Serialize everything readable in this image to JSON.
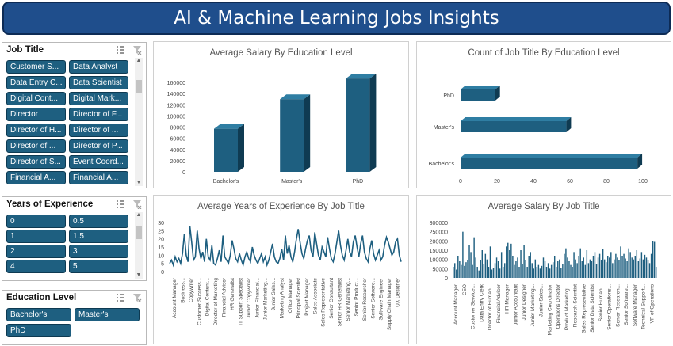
{
  "header": {
    "title": "AI & Machine Learning Jobs Insights"
  },
  "slicers": {
    "job_title": {
      "title": "Job Title",
      "items": [
        "Customer S...",
        "Data Analyst",
        "Data Entry C...",
        "Data Scientist",
        "Digital Cont...",
        "Digital Mark...",
        "Director",
        "Director of F...",
        "Director of H...",
        "Director of ...",
        "Director of ...",
        "Director of P...",
        "Director of S...",
        "Event Coord...",
        "Financial A...",
        "Financial A..."
      ]
    },
    "years_experience": {
      "title": "Years of Experience",
      "items": [
        "0",
        "0.5",
        "1",
        "1.5",
        "2",
        "3",
        "4",
        "5"
      ]
    },
    "education_level": {
      "title": "Education Level",
      "items": [
        "Bachelor's",
        "Master's",
        "PhD"
      ]
    }
  },
  "colors": {
    "bar": "#1e5f80",
    "bar_top": "#2f7ea3",
    "bar_side": "#0f3b52",
    "banner": "#1f4e8c"
  },
  "icons": {
    "multi_select": "multi-select-icon",
    "clear_filter": "clear-filter-icon"
  },
  "charts": {
    "salary_by_education": {
      "title": "Average Salary By Education Level",
      "type": "bar",
      "categories": [
        "Bachelor's",
        "Master's",
        "PhD"
      ],
      "values": [
        77000,
        130000,
        167000
      ],
      "yticks": [
        "0",
        "20000",
        "40000",
        "60000",
        "80000",
        "100000",
        "120000",
        "140000",
        "160000"
      ],
      "ylim": [
        0,
        170000
      ]
    },
    "count_by_education": {
      "title": "Count of Job Title By Education Level",
      "type": "bar-horizontal",
      "categories": [
        "Bachelor's",
        "Master's",
        "PhD"
      ],
      "values": [
        97,
        58,
        19
      ],
      "xticks": [
        "0",
        "20",
        "40",
        "60",
        "80",
        "100"
      ],
      "xlim": [
        0,
        100
      ]
    },
    "experience_by_title": {
      "title": "Average Years of Experience By Job Title",
      "type": "line",
      "yticks": [
        "0",
        "5",
        "10",
        "15",
        "20",
        "25",
        "30"
      ],
      "ylim": [
        0,
        30
      ],
      "xlabels": [
        "Account Manager",
        "Business...",
        "Copywriter",
        "Customer Success...",
        "Digital Content...",
        "Director of Marketing",
        "Financial Advisor",
        "HR Generalist",
        "IT Support Specialist",
        "Junior Copywriter",
        "Junior Financial...",
        "Junior Marketing...",
        "Junior Sales...",
        "Marketing Analyst",
        "Office Manager",
        "Principal Scientist",
        "Project Manager",
        "Sales Associate",
        "Sales Representative",
        "Senior Consultant",
        "Senior HR Generalist",
        "Senior Marketing...",
        "Senior Product...",
        "Senior Researcher",
        "Senior Software...",
        "Software Engineer",
        "Supply Chain Manager",
        "UX Designer"
      ],
      "values": [
        5,
        7,
        4,
        9,
        6,
        8,
        5,
        11,
        23,
        10,
        6,
        28,
        18,
        7,
        9,
        25,
        14,
        8,
        12,
        6,
        20,
        9,
        7,
        16,
        5,
        4,
        8,
        13,
        6,
        22,
        9,
        7,
        5,
        10,
        19,
        14,
        8,
        6,
        11,
        7,
        4,
        9,
        12,
        8,
        6,
        15,
        10,
        7,
        5,
        8,
        11,
        6,
        9,
        4,
        7,
        12,
        17,
        9,
        6,
        5,
        8,
        14,
        7,
        22,
        11,
        16,
        9,
        6,
        12,
        20,
        26,
        18,
        11,
        8,
        14,
        19,
        22,
        13,
        9,
        24,
        17,
        10,
        7,
        15,
        12,
        9,
        21,
        14,
        8,
        6,
        11,
        18,
        25,
        16,
        10,
        7,
        13,
        20,
        12,
        9,
        18,
        22,
        15,
        9,
        17,
        22,
        12,
        8,
        6,
        14,
        19,
        11,
        7,
        10,
        13,
        7,
        9,
        16,
        21,
        18,
        14,
        10,
        12,
        18,
        20,
        10,
        6
      ],
      "xtick_count": 28
    },
    "salary_by_title": {
      "title": "Average Salary By Job Title",
      "type": "bar",
      "yticks": [
        "0",
        "50000",
        "100000",
        "150000",
        "200000",
        "250000",
        "300000"
      ],
      "ylim": [
        0,
        300000
      ],
      "xlabels": [
        "Account Manager",
        "CEO",
        "Customer Service...",
        "Data Entry Clerk",
        "Director of Human...",
        "Financial Advisor",
        "HR Manager",
        "Junior Accountant",
        "Junior Designer",
        "Junior Marketing...",
        "Junior Sales...",
        "Marketing Coordinator",
        "Operations Director",
        "Product Marketing...",
        "Research Scientist",
        "Sales Representative",
        "Senior Data Scientist",
        "Senior Human...",
        "Senior Operations...",
        "Senior Research...",
        "Senior Software...",
        "Software Manager",
        "Technical Support...",
        "VP of Operations"
      ],
      "values": [
        60000,
        80000,
        45000,
        120000,
        90000,
        70000,
        250000,
        65000,
        85000,
        95000,
        180000,
        140000,
        70000,
        220000,
        110000,
        60000,
        40000,
        95000,
        150000,
        75000,
        130000,
        100000,
        60000,
        170000,
        45000,
        55000,
        80000,
        110000,
        90000,
        50000,
        140000,
        60000,
        80000,
        170000,
        190000,
        150000,
        185000,
        120000,
        70000,
        90000,
        110000,
        60000,
        150000,
        75000,
        180000,
        95000,
        60000,
        120000,
        140000,
        80000,
        50000,
        100000,
        60000,
        70000,
        50000,
        65000,
        110000,
        90000,
        60000,
        80000,
        50000,
        70000,
        85000,
        120000,
        60000,
        90000,
        100000,
        55000,
        75000,
        130000,
        160000,
        110000,
        90000,
        70000,
        60000,
        140000,
        100000,
        80000,
        120000,
        160000,
        90000,
        110000,
        70000,
        150000,
        80000,
        100000,
        90000,
        120000,
        140000,
        75000,
        110000,
        130000,
        95000,
        155000,
        100000,
        85000,
        120000,
        110000,
        140000,
        80000,
        100000,
        130000,
        110000,
        95000,
        170000,
        120000,
        130000,
        105000,
        90000,
        160000,
        140000,
        110000,
        100000,
        120000,
        150000,
        90000,
        105000,
        140000,
        100000,
        125000,
        110000,
        95000,
        80000,
        130000,
        200000,
        195000,
        60000
      ],
      "xtick_count": 24
    }
  }
}
